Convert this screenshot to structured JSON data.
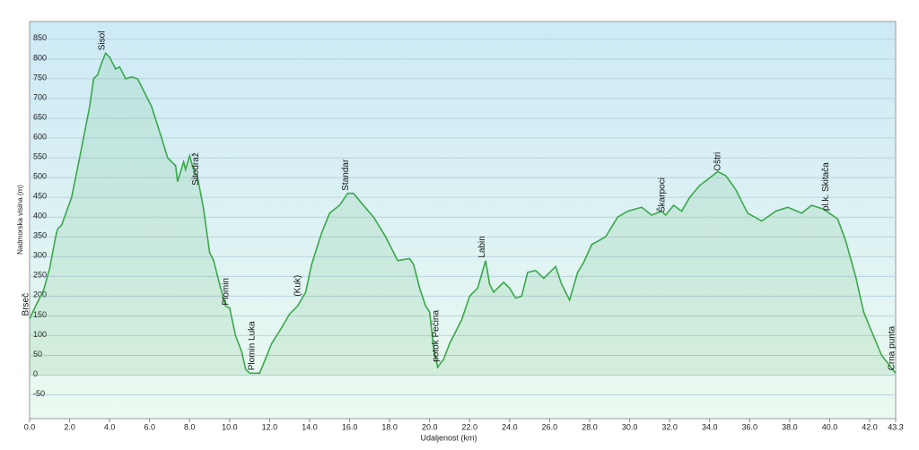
{
  "chart_data": {
    "type": "area",
    "x_label": "Udaljenost  (km)",
    "y_label": "Nadmorska visina (m)",
    "color": "#3aa84a",
    "grid": true,
    "xlim": [
      0,
      43.3
    ],
    "ylim": [
      -110,
      895
    ],
    "xticks": [
      {
        "value": 0,
        "label": "0.0"
      },
      {
        "value": 2,
        "label": "2.0"
      },
      {
        "value": 4,
        "label": "4.0"
      },
      {
        "value": 6,
        "label": "6.0"
      },
      {
        "value": 8,
        "label": "8.0"
      },
      {
        "value": 10,
        "label": "10.0"
      },
      {
        "value": 12,
        "label": "12.0"
      },
      {
        "value": 14,
        "label": "14.0"
      },
      {
        "value": 16,
        "label": "16.0"
      },
      {
        "value": 18,
        "label": "18.0"
      },
      {
        "value": 20,
        "label": "20.0"
      },
      {
        "value": 22,
        "label": "22.0"
      },
      {
        "value": 24,
        "label": "24.0"
      },
      {
        "value": 26,
        "label": "26.0"
      },
      {
        "value": 28,
        "label": "28.0"
      },
      {
        "value": 30,
        "label": "30.0"
      },
      {
        "value": 32,
        "label": "32.0"
      },
      {
        "value": 34,
        "label": "34.0"
      },
      {
        "value": 36,
        "label": "36.0"
      },
      {
        "value": 38,
        "label": "38.0"
      },
      {
        "value": 40,
        "label": "40.0"
      },
      {
        "value": 42,
        "label": "42.0"
      },
      43.3
    ],
    "yticks": [
      -50,
      0,
      50,
      100,
      150,
      200,
      250,
      300,
      350,
      400,
      450,
      500,
      550,
      600,
      650,
      700,
      750,
      800,
      850
    ],
    "x": [
      0,
      0.3,
      0.7,
      1.0,
      1.3,
      1.4,
      1.6,
      2.1,
      2.5,
      3.0,
      3.2,
      3.4,
      3.6,
      3.8,
      4.0,
      4.3,
      4.5,
      4.8,
      5.1,
      5.4,
      5.7,
      6.1,
      6.6,
      6.9,
      7.3,
      7.4,
      7.7,
      7.8,
      8.0,
      8.2,
      8.4,
      8.7,
      9.0,
      9.2,
      9.5,
      9.8,
      10.0,
      10.3,
      10.6,
      10.8,
      11.0,
      11.5,
      11.7,
      12.1,
      12.6,
      13.0,
      13.4,
      13.8,
      14.1,
      14.6,
      15.0,
      15.5,
      15.9,
      16.2,
      16.6,
      17.2,
      17.8,
      18.4,
      19.0,
      19.2,
      19.5,
      19.8,
      20.0,
      20.2,
      20.4,
      20.7,
      21.0,
      21.3,
      21.6,
      22.0,
      22.4,
      22.8,
      23.0,
      23.2,
      23.7,
      24.0,
      24.3,
      24.6,
      24.9,
      25.3,
      25.7,
      26.3,
      26.6,
      27.0,
      27.4,
      27.7,
      28.1,
      28.8,
      29.4,
      29.9,
      30.6,
      31.1,
      31.6,
      31.8,
      32.2,
      32.6,
      33.0,
      33.5,
      33.9,
      34.4,
      34.8,
      35.3,
      35.9,
      36.6,
      37.3,
      37.9,
      38.6,
      39.1,
      39.7,
      40.4,
      40.8,
      41.3,
      41.7,
      42.1,
      42.6,
      43.3
    ],
    "values": [
      143,
      175,
      215,
      270,
      350,
      370,
      380,
      450,
      550,
      680,
      750,
      760,
      790,
      815,
      805,
      775,
      780,
      750,
      755,
      750,
      720,
      680,
      600,
      550,
      530,
      490,
      540,
      520,
      555,
      520,
      500,
      420,
      310,
      290,
      230,
      175,
      170,
      100,
      60,
      15,
      5,
      5,
      30,
      80,
      120,
      155,
      175,
      210,
      280,
      360,
      410,
      430,
      460,
      460,
      435,
      400,
      350,
      290,
      295,
      280,
      220,
      175,
      160,
      70,
      20,
      40,
      80,
      110,
      140,
      200,
      220,
      290,
      230,
      210,
      235,
      220,
      195,
      200,
      260,
      265,
      245,
      275,
      230,
      190,
      260,
      285,
      330,
      350,
      400,
      415,
      425,
      405,
      415,
      405,
      430,
      415,
      450,
      480,
      495,
      515,
      505,
      470,
      410,
      390,
      415,
      425,
      410,
      430,
      420,
      395,
      340,
      250,
      160,
      110,
      50,
      5
    ],
    "annotations": [
      {
        "text": "Brseč",
        "x": 0
      },
      {
        "text": "Sisol",
        "x": 3.8
      },
      {
        "text": "Sitodraž",
        "x": 8.5
      },
      {
        "text": "Plomin",
        "x": 10.0
      },
      {
        "text": "Plomin Luka",
        "x": 11.3
      },
      {
        "text": "(Kuk)",
        "x": 13.6
      },
      {
        "text": "Standar",
        "x": 16.0
      },
      {
        "text": "potok Pećina",
        "x": 20.5
      },
      {
        "text": "Labin",
        "x": 22.8
      },
      {
        "text": "Škarpoci",
        "x": 31.8
      },
      {
        "text": "Oštri",
        "x": 34.6
      },
      {
        "text": "pl.k. Skitača",
        "x": 40.0
      },
      {
        "text": "Crna punta",
        "x": 43.3
      }
    ]
  }
}
